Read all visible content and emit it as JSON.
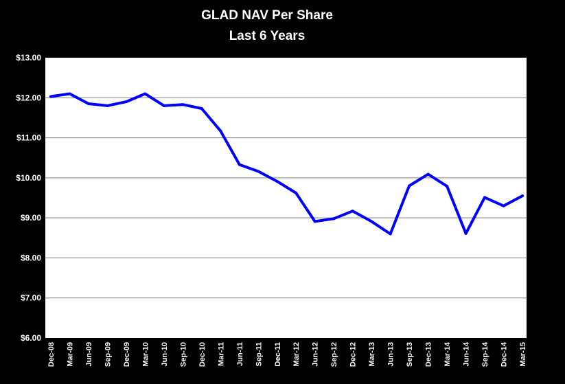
{
  "chart_data": {
    "type": "line",
    "title": "GLAD NAV Per Share",
    "subtitle": "Last 6 Years",
    "xlabel": "",
    "ylabel": "",
    "ylim": [
      6.0,
      13.0
    ],
    "y_ticks": [
      "$6.00",
      "$7.00",
      "$8.00",
      "$9.00",
      "$10.00",
      "$11.00",
      "$12.00",
      "$13.00"
    ],
    "y_tick_values": [
      6,
      7,
      8,
      9,
      10,
      11,
      12,
      13
    ],
    "grid": true,
    "legend": "none",
    "categories": [
      "Dec-08",
      "Mar-09",
      "Jun-09",
      "Sep-09",
      "Dec-09",
      "Mar-10",
      "Jun-10",
      "Sep-10",
      "Dec-10",
      "Mar-11",
      "Jun-11",
      "Sep-11",
      "Dec-11",
      "Mar-12",
      "Jun-12",
      "Sep-12",
      "Dec-12",
      "Mar-13",
      "Jun-13",
      "Sep-13",
      "Dec-13",
      "Mar-14",
      "Jun-14",
      "Sep-14",
      "Dec-14",
      "Mar-15"
    ],
    "series": [
      {
        "values": [
          12.03,
          12.1,
          11.85,
          11.8,
          11.9,
          12.1,
          11.8,
          11.83,
          11.73,
          11.17,
          10.33,
          10.16,
          9.91,
          9.62,
          8.91,
          8.98,
          9.17,
          8.91,
          8.6,
          9.8,
          10.09,
          9.79,
          8.61,
          9.51,
          9.3,
          9.55
        ]
      }
    ],
    "colors": {
      "background": "#000000",
      "plot_area": "#ffffff",
      "line": "#0000ff",
      "gridline": "#808080",
      "text": "#ffffff"
    }
  }
}
